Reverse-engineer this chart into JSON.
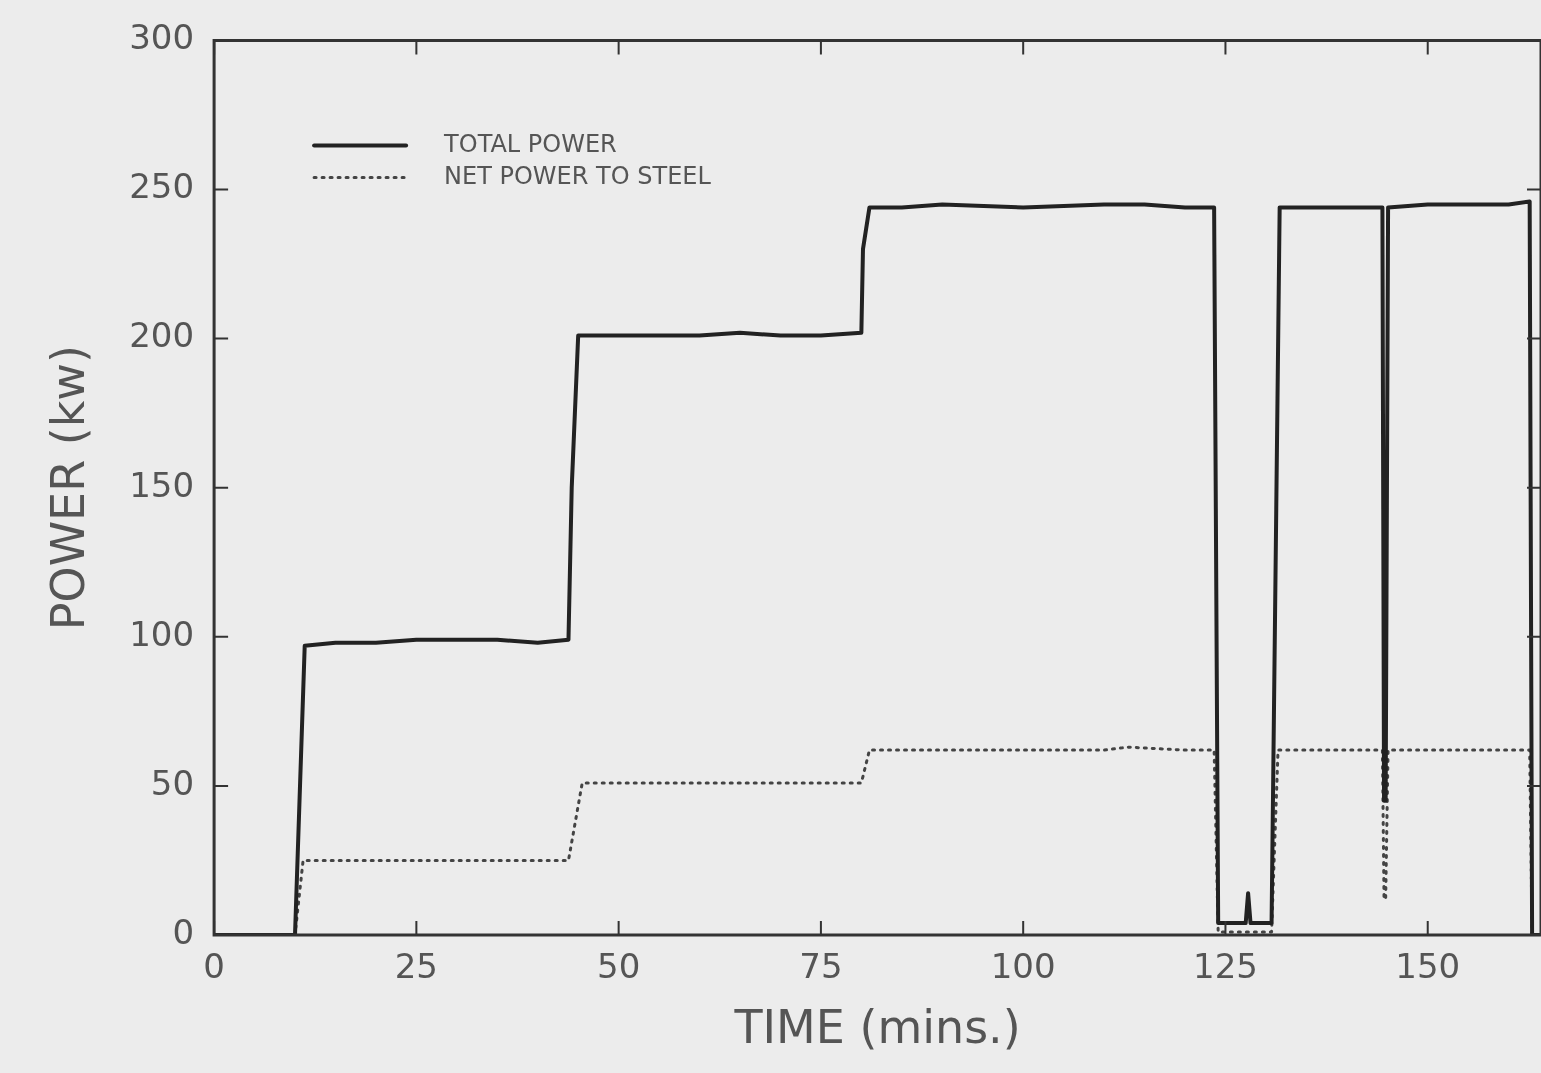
{
  "chart_data": {
    "type": "line",
    "xlabel": "TIME (mins.)",
    "ylabel": "POWER (kw)",
    "xlim": [
      0,
      164
    ],
    "ylim": [
      0,
      300
    ],
    "xticks": [
      0,
      25,
      50,
      75,
      100,
      125,
      150
    ],
    "yticks": [
      0,
      50,
      100,
      150,
      200,
      250,
      300
    ],
    "grid": false,
    "legend": "top left",
    "marker": "none",
    "series": [
      {
        "name": "TOTAL POWER",
        "color": "#222222",
        "line_style": "solid",
        "x": [
          0,
          10,
          11.2,
          15,
          20,
          25,
          30,
          35,
          40,
          43.8,
          44.2,
          45,
          50,
          55,
          60,
          65,
          70,
          75,
          80,
          80.2,
          81,
          85,
          90,
          100,
          110,
          115,
          120,
          123.6,
          124.1,
          127.5,
          127.8,
          128.1,
          130.7,
          131.7,
          135,
          140,
          144.4,
          144.6,
          144.8,
          145.1,
          150,
          155,
          160,
          162.6,
          162.9,
          164
        ],
        "values": [
          0,
          0,
          97,
          98,
          98,
          99,
          99,
          99,
          98,
          99,
          150,
          201,
          201,
          201,
          201,
          202,
          201,
          201,
          202,
          230,
          244,
          244,
          245,
          244,
          245,
          245,
          244,
          244,
          4,
          4,
          14,
          4,
          4,
          244,
          244,
          244,
          244,
          45,
          45,
          244,
          245,
          245,
          245,
          246,
          0,
          0
        ]
      },
      {
        "name": "NET POWER TO STEEL",
        "color": "#444444",
        "line_style": "dotted",
        "x": [
          0,
          10,
          11,
          20,
          30,
          40,
          43.8,
          45.5,
          50,
          60,
          70,
          80,
          81,
          90,
          100,
          110,
          113,
          120,
          123.6,
          124.1,
          130.7,
          131.5,
          140,
          144.4,
          144.6,
          144.8,
          145.1,
          150,
          160,
          162.6,
          162.9,
          164
        ],
        "values": [
          0,
          0,
          25,
          25,
          25,
          25,
          25,
          51,
          51,
          51,
          51,
          51,
          62,
          62,
          62,
          62,
          63,
          62,
          62,
          1,
          1,
          62,
          62,
          62,
          12,
          12,
          62,
          62,
          62,
          62,
          0,
          0
        ]
      }
    ]
  }
}
